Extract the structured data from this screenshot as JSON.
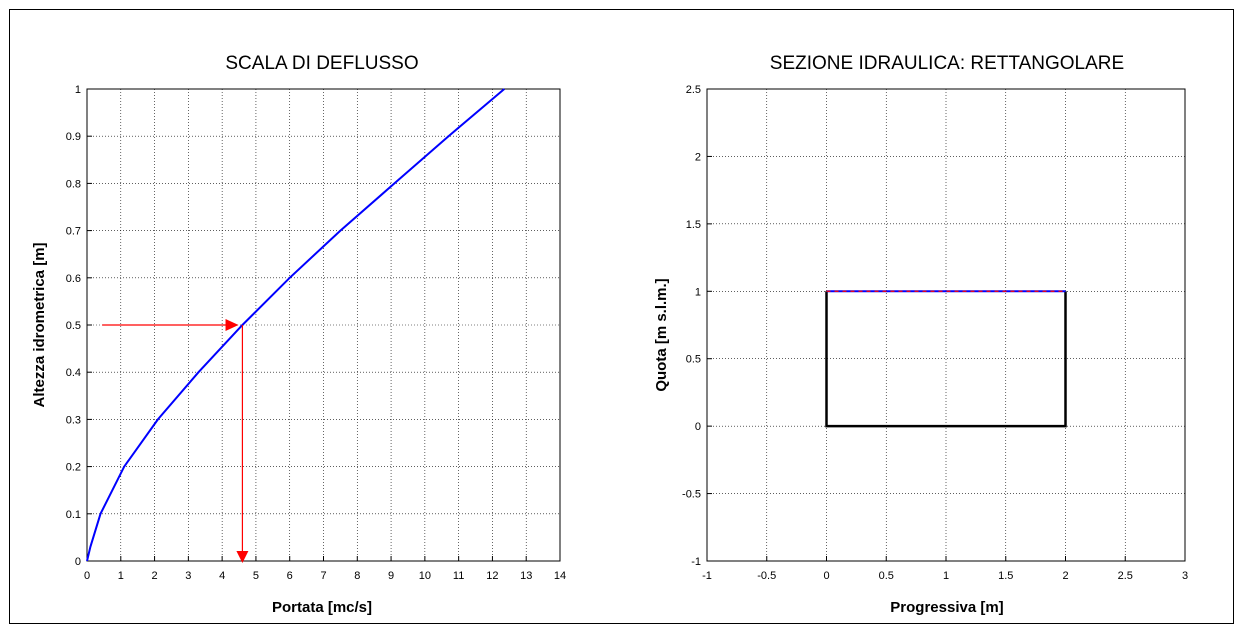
{
  "chart_data": [
    {
      "type": "line",
      "title": "SCALA DI DEFLUSSO",
      "xlabel": "Portata  [mc/s]",
      "ylabel": "Altezza idrometrica  [m]",
      "xlim": [
        0,
        14
      ],
      "ylim": [
        0,
        1
      ],
      "grid": true,
      "xticks": [
        "0",
        "1",
        "2",
        "3",
        "4",
        "5",
        "6",
        "7",
        "8",
        "9",
        "10",
        "11",
        "12",
        "13",
        "14"
      ],
      "yticks": [
        "0",
        "0.1",
        "0.2",
        "0.3",
        "0.4",
        "0.5",
        "0.6",
        "0.7",
        "0.8",
        "0.9",
        "1"
      ],
      "series": [
        {
          "color": "#0000ff",
          "x": [
            0,
            0.1,
            0.4,
            1.1,
            2.1,
            3.3,
            4.6,
            6.0,
            7.5,
            9.1,
            10.7,
            12.35
          ],
          "y": [
            0,
            0.03,
            0.1,
            0.2,
            0.3,
            0.4,
            0.5,
            0.6,
            0.7,
            0.8,
            0.9,
            1.0
          ]
        }
      ],
      "annotations": {
        "color": "#ff0000",
        "horizontal_arrow": {
          "x_from": 0.45,
          "x_to": 4.1,
          "y": 0.5
        },
        "vertical_arrow": {
          "x": 4.6,
          "y_from": 0.5,
          "y_to": 0.0
        }
      }
    },
    {
      "type": "line",
      "title": "SEZIONE IDRAULICA: RETTANGOLARE",
      "xlabel": "Progressiva  [m]",
      "ylabel": "Quota  [m s.l.m.]",
      "xlim": [
        -1,
        3
      ],
      "ylim": [
        -1,
        2.5
      ],
      "grid": true,
      "xticks": [
        "-1",
        "-0.5",
        "0",
        "0.5",
        "1",
        "1.5",
        "2",
        "2.5",
        "3"
      ],
      "yticks": [
        "-1",
        "-0.5",
        "0",
        "0.5",
        "1",
        "1.5",
        "2",
        "2.5"
      ],
      "series": [
        {
          "color": "#000000",
          "x": [
            0,
            0,
            2,
            2
          ],
          "y": [
            1,
            0,
            0,
            1
          ]
        },
        {
          "color": "#0000ff",
          "x": [
            0,
            2
          ],
          "y": [
            1,
            1
          ]
        }
      ],
      "water_level_color": "#ff0000"
    }
  ]
}
